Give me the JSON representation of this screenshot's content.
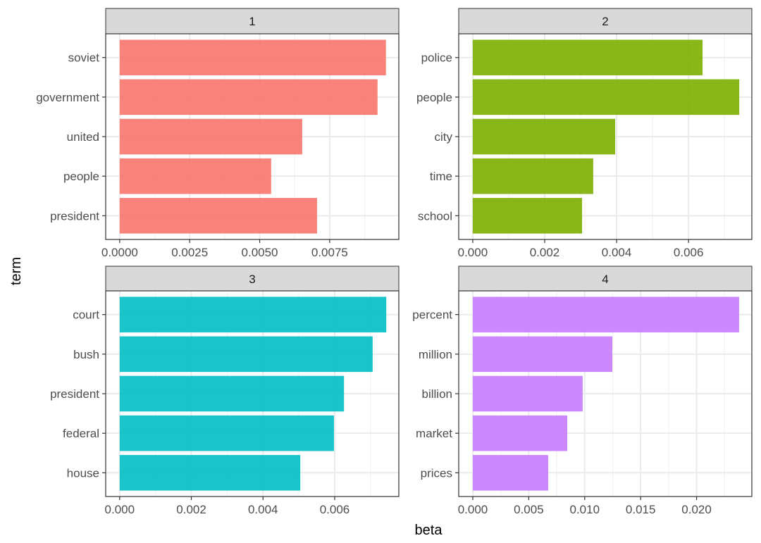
{
  "chart_data": {
    "type": "bar",
    "orientation": "horizontal",
    "xlabel": "beta",
    "ylabel": "term",
    "grid": true,
    "legend": "none",
    "panels": [
      {
        "title": "1",
        "color": "#F8766D",
        "categories": [
          "soviet",
          "government",
          "united",
          "people",
          "president"
        ],
        "values": [
          0.00951,
          0.00921,
          0.00652,
          0.00541,
          0.00705
        ],
        "xlim": [
          -0.0005,
          0.00997
        ],
        "ticks": [
          0,
          0.0025,
          0.005,
          0.0075
        ],
        "tick_labels": [
          "0.0000",
          "0.0025",
          "0.0050",
          "0.0075"
        ]
      },
      {
        "title": "2",
        "color": "#7CAE00",
        "categories": [
          "police",
          "people",
          "city",
          "time",
          "school"
        ],
        "values": [
          0.00639,
          0.00741,
          0.00396,
          0.00335,
          0.00304
        ],
        "xlim": [
          -0.00039,
          0.00776
        ],
        "ticks": [
          0,
          0.002,
          0.004,
          0.006
        ],
        "tick_labels": [
          "0.000",
          "0.002",
          "0.004",
          "0.006"
        ]
      },
      {
        "title": "3",
        "color": "#00BFC4",
        "categories": [
          "court",
          "bush",
          "president",
          "federal",
          "house"
        ],
        "values": [
          0.00744,
          0.00706,
          0.00626,
          0.00598,
          0.00504
        ],
        "xlim": [
          -0.00039,
          0.00779
        ],
        "ticks": [
          0,
          0.002,
          0.004,
          0.006
        ],
        "tick_labels": [
          "0.000",
          "0.002",
          "0.004",
          "0.006"
        ]
      },
      {
        "title": "4",
        "color": "#C77CFF",
        "categories": [
          "percent",
          "million",
          "billion",
          "market",
          "prices"
        ],
        "values": [
          0.0238,
          0.01247,
          0.00982,
          0.00844,
          0.00674
        ],
        "xlim": [
          -0.00126,
          0.02494
        ],
        "ticks": [
          0,
          0.005,
          0.01,
          0.015,
          0.02
        ],
        "tick_labels": [
          "0.000",
          "0.005",
          "0.010",
          "0.015",
          "0.020"
        ]
      }
    ]
  }
}
